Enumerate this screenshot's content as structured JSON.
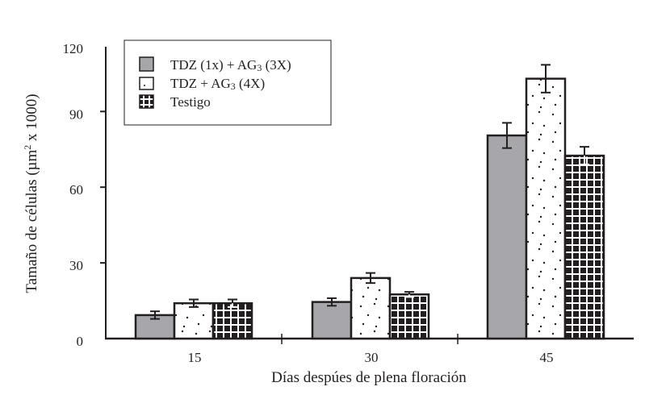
{
  "chart_data": {
    "type": "bar",
    "title": "",
    "xlabel": "Días despúes de plena floración",
    "ylabel": "Tamaño de células (µm² x 1000)",
    "categories": [
      "15",
      "30",
      "45"
    ],
    "ylim": [
      0,
      120
    ],
    "yticks": [
      0,
      30,
      60,
      90,
      120
    ],
    "grid": false,
    "legend_position": "upper-left",
    "series": [
      {
        "name": "TDZ (1x) + AG3 (3X)",
        "pattern": "solid-gray",
        "color": "#a7a6ab",
        "values": [
          9.3,
          14.5,
          80.5
        ],
        "errors": [
          1.5,
          1.5,
          5
        ]
      },
      {
        "name": "TDZ + AG3 (4X)",
        "pattern": "dots",
        "color": "#ffffff",
        "values": [
          14,
          24,
          103
        ],
        "errors": [
          1.5,
          2,
          5.5
        ]
      },
      {
        "name": "Testigo",
        "pattern": "grid",
        "color": "#231f20",
        "values": [
          14,
          17.5,
          72.5
        ],
        "errors": [
          1.5,
          1,
          3.5
        ]
      }
    ]
  },
  "legend": {
    "items": [
      {
        "prefix": "TDZ (1x) + AG",
        "sub": "3",
        "suffix": " (3X)"
      },
      {
        "prefix": "TDZ + AG",
        "sub": "3",
        "suffix": " (4X)"
      },
      {
        "prefix": "Testigo",
        "sub": "",
        "suffix": ""
      }
    ]
  },
  "axes": {
    "y_title_main": "Tamaño de células (µm",
    "y_title_sup": "2",
    "y_title_end": " x 1000)",
    "x_title": "Días despúes de plena floración"
  }
}
